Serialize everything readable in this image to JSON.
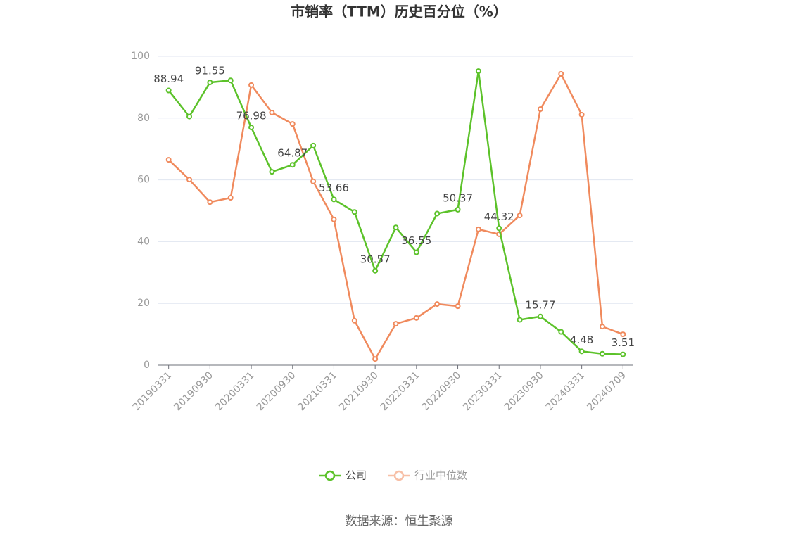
{
  "chart_data": {
    "type": "line",
    "title": "市销率（TTM）历史百分位（%）",
    "categories": [
      "20190331",
      null,
      "20190930",
      null,
      "20200331",
      null,
      "20200930",
      null,
      "20210331",
      null,
      "20210930",
      null,
      "20220331",
      null,
      "20220930",
      null,
      "20230331",
      null,
      "20230930",
      null,
      "20240331",
      null,
      "20240709"
    ],
    "series": [
      {
        "name": "公司",
        "color": "#5cc22a",
        "values": [
          88.94,
          80.5,
          91.55,
          92.2,
          76.98,
          62.6,
          64.87,
          71.1,
          53.66,
          49.6,
          30.57,
          44.6,
          36.55,
          49.1,
          50.37,
          95.2,
          44.32,
          14.7,
          15.77,
          10.8,
          4.48,
          3.7,
          3.51
        ],
        "value_labels": [
          "88.94",
          null,
          "91.55",
          null,
          "76.98",
          null,
          "64.87",
          null,
          "53.66",
          null,
          "30.57",
          null,
          "36.55",
          null,
          "50.37",
          null,
          "44.32",
          null,
          "15.77",
          null,
          "4.48",
          null,
          "3.51"
        ]
      },
      {
        "name": "行业中位数",
        "color": "#f08a5d",
        "values": [
          66.5,
          60.1,
          52.8,
          54.2,
          90.7,
          81.8,
          78.1,
          59.5,
          47.2,
          14.4,
          2.0,
          13.4,
          15.3,
          19.8,
          19.1,
          44.0,
          42.4,
          48.5,
          82.9,
          94.3,
          81.1,
          12.5,
          10.0
        ]
      }
    ],
    "ylim": [
      0,
      100
    ],
    "yticks": [
      0,
      20,
      40,
      60,
      80,
      100
    ],
    "grid": true,
    "legend": "bottom",
    "source": "数据来源：恒生聚源"
  }
}
